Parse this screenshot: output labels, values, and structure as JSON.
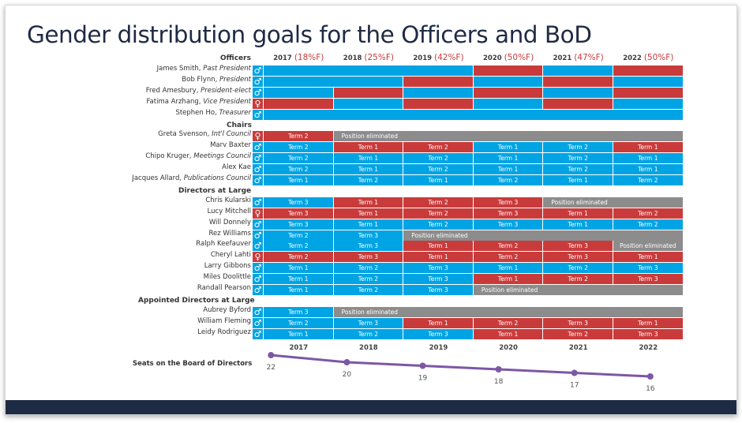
{
  "title": "Gender distribution goals for the Officers and BoD",
  "colors": {
    "male": "#00a4e4",
    "female": "#c93b3b",
    "eliminated": "#8c8c8c",
    "line": "#7d57a6"
  },
  "years": [
    {
      "year": "2017",
      "pct": "(18%F)"
    },
    {
      "year": "2018",
      "pct": "(25%F)"
    },
    {
      "year": "2019",
      "pct": "(42%F)"
    },
    {
      "year": "2020",
      "pct": "(50%F)"
    },
    {
      "year": "2021",
      "pct": "(47%F)"
    },
    {
      "year": "2022",
      "pct": "(50%F)"
    }
  ],
  "sections": [
    {
      "label": "Officers",
      "header_row": true,
      "rows": [
        {
          "name": "James Smith, ",
          "role": "Past President",
          "gender": "male",
          "cells": [
            {
              "span": 3,
              "color": "blue",
              "text": ""
            },
            {
              "span": 1,
              "color": "red",
              "text": ""
            },
            {
              "span": 1,
              "color": "blue",
              "text": ""
            },
            {
              "span": 1,
              "color": "red",
              "text": ""
            }
          ]
        },
        {
          "name": "Bob Flynn, ",
          "role": "President",
          "gender": "male",
          "cells": [
            {
              "span": 2,
              "color": "blue",
              "text": ""
            },
            {
              "span": 1,
              "color": "red",
              "text": ""
            },
            {
              "span": 1,
              "color": "blue",
              "text": ""
            },
            {
              "span": 1,
              "color": "red",
              "text": ""
            },
            {
              "span": 1,
              "color": "blue",
              "text": ""
            }
          ]
        },
        {
          "name": "Fred Amesbury, ",
          "role": "President-elect",
          "gender": "male",
          "cells": [
            {
              "span": 1,
              "color": "blue",
              "text": ""
            },
            {
              "span": 1,
              "color": "red",
              "text": ""
            },
            {
              "span": 1,
              "color": "blue",
              "text": ""
            },
            {
              "span": 1,
              "color": "red",
              "text": ""
            },
            {
              "span": 1,
              "color": "blue",
              "text": ""
            },
            {
              "span": 1,
              "color": "red",
              "text": ""
            }
          ]
        },
        {
          "name": "Fatima Arzhang, ",
          "role": "Vice President",
          "gender": "female",
          "cells": [
            {
              "span": 1,
              "color": "red",
              "text": ""
            },
            {
              "span": 1,
              "color": "blue",
              "text": ""
            },
            {
              "span": 1,
              "color": "red",
              "text": ""
            },
            {
              "span": 1,
              "color": "blue",
              "text": ""
            },
            {
              "span": 1,
              "color": "red",
              "text": ""
            },
            {
              "span": 1,
              "color": "blue",
              "text": ""
            }
          ]
        },
        {
          "name": "Stephen Ho, ",
          "role": "Treasurer",
          "gender": "male",
          "cells": [
            {
              "span": 6,
              "color": "blue",
              "text": ""
            }
          ]
        }
      ]
    },
    {
      "label": "Chairs",
      "rows": [
        {
          "name": "Greta Svenson, ",
          "role": "Int'l Council",
          "gender": "female",
          "cells": [
            {
              "span": 1,
              "color": "red",
              "text": "Term 2"
            },
            {
              "span": 5,
              "color": "gray",
              "text": "Position eliminated",
              "align": "left"
            }
          ]
        },
        {
          "name": "Marv Baxter",
          "role": "",
          "gender": "male",
          "cells": [
            {
              "span": 1,
              "color": "blue",
              "text": "Term 2"
            },
            {
              "span": 1,
              "color": "red",
              "text": "Term 1"
            },
            {
              "span": 1,
              "color": "red",
              "text": "Term 2"
            },
            {
              "span": 1,
              "color": "blue",
              "text": "Term 1"
            },
            {
              "span": 1,
              "color": "blue",
              "text": "Term 2"
            },
            {
              "span": 1,
              "color": "red",
              "text": "Term 1"
            }
          ]
        },
        {
          "name": "Chipo Kruger, ",
          "role": "Meetings Council",
          "gender": "male",
          "cells": [
            {
              "span": 1,
              "color": "blue",
              "text": "Term 2"
            },
            {
              "span": 1,
              "color": "blue",
              "text": "Term 1"
            },
            {
              "span": 1,
              "color": "blue",
              "text": "Term 2"
            },
            {
              "span": 1,
              "color": "blue",
              "text": "Term 1"
            },
            {
              "span": 1,
              "color": "blue",
              "text": "Term 2"
            },
            {
              "span": 1,
              "color": "blue",
              "text": "Term 1"
            }
          ]
        },
        {
          "name": "Alex Kae",
          "role": "",
          "gender": "male",
          "cells": [
            {
              "span": 1,
              "color": "blue",
              "text": "Term 2"
            },
            {
              "span": 1,
              "color": "blue",
              "text": "Term 1"
            },
            {
              "span": 1,
              "color": "blue",
              "text": "Term 2"
            },
            {
              "span": 1,
              "color": "blue",
              "text": "Term 1"
            },
            {
              "span": 1,
              "color": "blue",
              "text": "Term 2"
            },
            {
              "span": 1,
              "color": "blue",
              "text": "Term 1"
            }
          ]
        },
        {
          "name": "Jacques Allard, ",
          "role": "Publications Council",
          "gender": "male",
          "cells": [
            {
              "span": 1,
              "color": "blue",
              "text": "Term 1"
            },
            {
              "span": 1,
              "color": "blue",
              "text": "Term 2"
            },
            {
              "span": 1,
              "color": "blue",
              "text": "Term 1"
            },
            {
              "span": 1,
              "color": "blue",
              "text": "Term 2"
            },
            {
              "span": 1,
              "color": "blue",
              "text": "Term 1"
            },
            {
              "span": 1,
              "color": "blue",
              "text": "Term 2"
            }
          ]
        }
      ]
    },
    {
      "label": "Directors at Large",
      "rows": [
        {
          "name": "Chris Kularski",
          "role": "",
          "gender": "male",
          "cells": [
            {
              "span": 1,
              "color": "blue",
              "text": "Term 3"
            },
            {
              "span": 1,
              "color": "red",
              "text": "Term 1"
            },
            {
              "span": 1,
              "color": "red",
              "text": "Term 2"
            },
            {
              "span": 1,
              "color": "red",
              "text": "Term 3"
            },
            {
              "span": 2,
              "color": "gray",
              "text": "Position eliminated",
              "align": "left"
            }
          ]
        },
        {
          "name": "Lucy Mitchell",
          "role": "",
          "gender": "female",
          "cells": [
            {
              "span": 1,
              "color": "red",
              "text": "Term 3"
            },
            {
              "span": 1,
              "color": "red",
              "text": "Term 1"
            },
            {
              "span": 1,
              "color": "red",
              "text": "Term 2"
            },
            {
              "span": 1,
              "color": "red",
              "text": "Term 3"
            },
            {
              "span": 1,
              "color": "red",
              "text": "Term 1"
            },
            {
              "span": 1,
              "color": "red",
              "text": "Term 2"
            }
          ]
        },
        {
          "name": "Will Donnely",
          "role": "",
          "gender": "male",
          "cells": [
            {
              "span": 1,
              "color": "blue",
              "text": "Term 3"
            },
            {
              "span": 1,
              "color": "blue",
              "text": "Term 1"
            },
            {
              "span": 1,
              "color": "blue",
              "text": "Term 2"
            },
            {
              "span": 1,
              "color": "blue",
              "text": "Term 3"
            },
            {
              "span": 1,
              "color": "blue",
              "text": "Term 1"
            },
            {
              "span": 1,
              "color": "blue",
              "text": "Term 2"
            }
          ]
        },
        {
          "name": "Rez Williams",
          "role": "",
          "gender": "male",
          "cells": [
            {
              "span": 1,
              "color": "blue",
              "text": "Term 2"
            },
            {
              "span": 1,
              "color": "blue",
              "text": "Term 3"
            },
            {
              "span": 4,
              "color": "gray",
              "text": "Position eliminated",
              "align": "left"
            }
          ]
        },
        {
          "name": "Ralph Keefauver",
          "role": "",
          "gender": "male",
          "cells": [
            {
              "span": 1,
              "color": "blue",
              "text": "Term 2"
            },
            {
              "span": 1,
              "color": "blue",
              "text": "Term 3"
            },
            {
              "span": 1,
              "color": "red",
              "text": "Term 1"
            },
            {
              "span": 1,
              "color": "red",
              "text": "Term 2"
            },
            {
              "span": 1,
              "color": "red",
              "text": "Term 3"
            },
            {
              "span": 1,
              "color": "gray",
              "text": "Position eliminated"
            }
          ]
        },
        {
          "name": "Cheryl Lahti",
          "role": "",
          "gender": "female",
          "cells": [
            {
              "span": 1,
              "color": "red",
              "text": "Term 2"
            },
            {
              "span": 1,
              "color": "red",
              "text": "Term 3"
            },
            {
              "span": 1,
              "color": "red",
              "text": "Term 1"
            },
            {
              "span": 1,
              "color": "red",
              "text": "Term 2"
            },
            {
              "span": 1,
              "color": "red",
              "text": "Term 3"
            },
            {
              "span": 1,
              "color": "red",
              "text": "Term 1"
            }
          ]
        },
        {
          "name": "Larry Gibbons",
          "role": "",
          "gender": "male",
          "cells": [
            {
              "span": 1,
              "color": "blue",
              "text": "Term 1"
            },
            {
              "span": 1,
              "color": "blue",
              "text": "Term 2"
            },
            {
              "span": 1,
              "color": "blue",
              "text": "Term 3"
            },
            {
              "span": 1,
              "color": "blue",
              "text": "Term 1"
            },
            {
              "span": 1,
              "color": "blue",
              "text": "Term 2"
            },
            {
              "span": 1,
              "color": "blue",
              "text": "Term 3"
            }
          ]
        },
        {
          "name": "Miles Doolittle",
          "role": "",
          "gender": "male",
          "cells": [
            {
              "span": 1,
              "color": "blue",
              "text": "Term 1"
            },
            {
              "span": 1,
              "color": "blue",
              "text": "Term 2"
            },
            {
              "span": 1,
              "color": "blue",
              "text": "Term 3"
            },
            {
              "span": 1,
              "color": "red",
              "text": "Term 1"
            },
            {
              "span": 1,
              "color": "red",
              "text": "Term 2"
            },
            {
              "span": 1,
              "color": "red",
              "text": "Term 3"
            }
          ]
        },
        {
          "name": "Randall Pearson",
          "role": "",
          "gender": "male",
          "cells": [
            {
              "span": 1,
              "color": "blue",
              "text": "Term 1"
            },
            {
              "span": 1,
              "color": "blue",
              "text": "Term 2"
            },
            {
              "span": 1,
              "color": "blue",
              "text": "Term 3"
            },
            {
              "span": 3,
              "color": "gray",
              "text": "Position eliminated",
              "align": "left"
            }
          ]
        }
      ]
    },
    {
      "label": "Appointed Directors at Large",
      "rows": [
        {
          "name": "Aubrey Byford",
          "role": "",
          "gender": "male",
          "cells": [
            {
              "span": 1,
              "color": "blue",
              "text": "Term 3"
            },
            {
              "span": 5,
              "color": "gray",
              "text": "Position eliminated",
              "align": "left"
            }
          ]
        },
        {
          "name": "William Fleming",
          "role": "",
          "gender": "male",
          "cells": [
            {
              "span": 1,
              "color": "blue",
              "text": "Term 2"
            },
            {
              "span": 1,
              "color": "blue",
              "text": "Term 3"
            },
            {
              "span": 1,
              "color": "red",
              "text": "Term 1"
            },
            {
              "span": 1,
              "color": "red",
              "text": "Term 2"
            },
            {
              "span": 1,
              "color": "red",
              "text": "Term 3"
            },
            {
              "span": 1,
              "color": "red",
              "text": "Term 1"
            }
          ]
        },
        {
          "name": "Leidy Rodriguez",
          "role": "",
          "gender": "male",
          "cells": [
            {
              "span": 1,
              "color": "blue",
              "text": "Term 1"
            },
            {
              "span": 1,
              "color": "blue",
              "text": "Term 2"
            },
            {
              "span": 1,
              "color": "blue",
              "text": "Term 3"
            },
            {
              "span": 1,
              "color": "red",
              "text": "Term 1"
            },
            {
              "span": 1,
              "color": "red",
              "text": "Term 2"
            },
            {
              "span": 1,
              "color": "red",
              "text": "Term 3"
            }
          ]
        }
      ]
    }
  ],
  "gender_symbols": {
    "male": "♂",
    "female": "♀"
  },
  "seats": {
    "label": "Seats on the Board of Directors",
    "values": [
      22,
      20,
      19,
      18,
      17,
      16
    ],
    "years": [
      "2017",
      "2018",
      "2019",
      "2020",
      "2021",
      "2022"
    ]
  }
}
